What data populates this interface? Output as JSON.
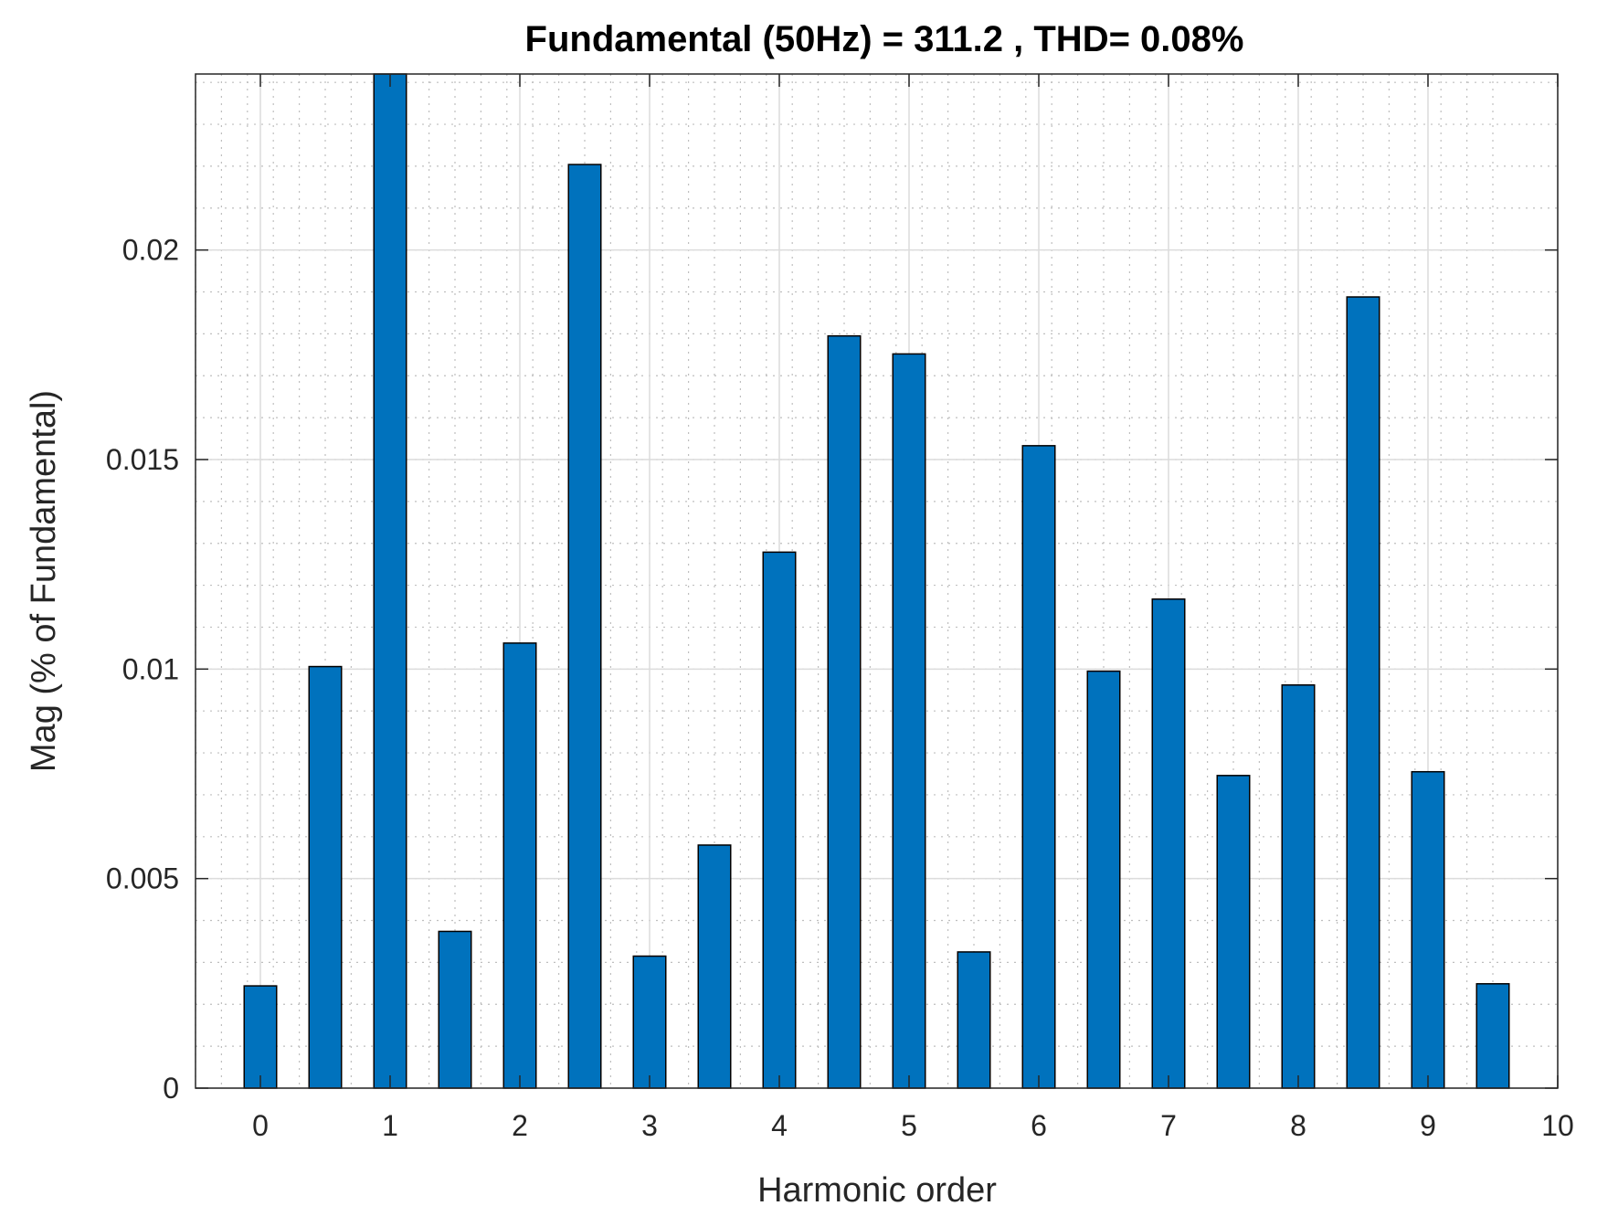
{
  "chart_data": {
    "type": "bar",
    "title": "Fundamental (50Hz) = 311.2 , THD= 0.08%",
    "xlabel": "Harmonic order",
    "ylabel": "Mag (% of Fundamental)",
    "xlim": [
      -0.5,
      10
    ],
    "ylim": [
      0,
      0.0242
    ],
    "xticks": [
      0,
      1,
      2,
      3,
      4,
      5,
      6,
      7,
      8,
      9,
      10
    ],
    "xtick_labels": [
      "0",
      "1",
      "2",
      "3",
      "4",
      "5",
      "6",
      "7",
      "8",
      "9",
      "10"
    ],
    "yticks": [
      0,
      0.005,
      0.01,
      0.015,
      0.02
    ],
    "ytick_labels": [
      "0",
      "0.005",
      "0.01",
      "0.015",
      "0.02"
    ],
    "x": [
      0,
      0.5,
      1,
      1.5,
      2,
      2.5,
      3,
      3.5,
      4,
      4.5,
      5,
      5.5,
      6,
      6.5,
      7,
      7.5,
      8,
      8.5,
      9,
      9.5
    ],
    "values": [
      0.00244,
      0.01006,
      0.0245,
      0.00374,
      0.01062,
      0.02204,
      0.00315,
      0.0058,
      0.01279,
      0.01795,
      0.01752,
      0.00325,
      0.01533,
      0.00995,
      0.01167,
      0.00746,
      0.00962,
      0.01888,
      0.00755,
      0.00249
    ],
    "bar_color": "#0072BD",
    "grid": true,
    "minor_grid": true
  }
}
